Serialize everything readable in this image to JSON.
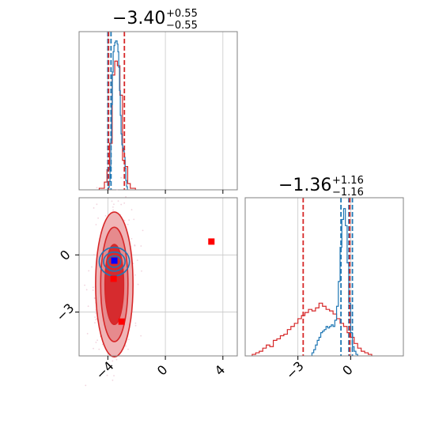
{
  "chart_data": {
    "type": "corner",
    "panels": [
      {
        "id": "param1",
        "title_value": "−3.40",
        "title_plus": "+0.55",
        "title_minus": "−0.55",
        "xlim": [
          -6,
          5
        ],
        "xticks": [
          -4,
          0,
          4
        ],
        "xticklabels": [
          "−4",
          "0",
          "4"
        ],
        "blue_hist": {
          "bin_start": -3.96,
          "bin_width": 0.055,
          "heights": [
            0.15,
            0.55,
            1.5,
            3.2,
            5.5,
            7.6,
            8.9,
            9.3,
            9.5,
            9.6,
            9.6,
            9.4,
            8.9,
            7.9,
            6.4,
            4.8,
            3.6,
            2.9,
            2.7,
            2.5,
            2.1,
            1.4,
            0.6,
            0.2
          ]
        },
        "red_hist": {
          "bin_start": -4.6,
          "bin_width": 0.18,
          "heights": [
            0.1,
            0.1,
            0.5,
            1.3,
            3.0,
            7.4,
            8.3,
            8.0,
            6.1,
            1.9,
            1.5,
            0.4,
            0.1,
            0.1
          ]
        },
        "blue_vlines": [
          -4.0,
          -3.78
        ],
        "red_vlines": [
          -3.95,
          -2.85
        ]
      },
      {
        "id": "param2",
        "title_value": "−1.36",
        "title_plus": "+1.16",
        "title_minus": "−1.16",
        "xlim": [
          -6,
          3
        ],
        "xticks": [
          -3,
          0
        ],
        "xticklabels": [
          "−3",
          "0"
        ],
        "blue_hist": {
          "bin_start": -2.2,
          "bin_width": 0.1,
          "heights": [
            0.2,
            0.4,
            0.7,
            1.0,
            1.2,
            1.5,
            1.6,
            1.7,
            1.9,
            1.8,
            1.9,
            2.0,
            1.9,
            2.3,
            3.2,
            4.8,
            7.0,
            8.8,
            9.5,
            8.4,
            6.0,
            3.4,
            1.5,
            0.6,
            0.3,
            0.1
          ]
        },
        "red_hist": {
          "bin_start": -5.6,
          "bin_width": 0.2,
          "heights": [
            0.1,
            0.2,
            0.3,
            0.5,
            0.7,
            0.6,
            1.0,
            1.1,
            1.3,
            1.4,
            1.7,
            1.9,
            2.1,
            2.4,
            2.6,
            2.8,
            3.0,
            2.9,
            3.1,
            3.4,
            3.2,
            3.0,
            2.9,
            2.7,
            2.4,
            2.1,
            1.9,
            1.5,
            1.2,
            0.8,
            0.5,
            0.3,
            0.2,
            0.1
          ]
        },
        "blue_vlines": [
          -0.55,
          0.1,
          -0.1
        ],
        "red_vlines": [
          -2.7,
          -0.05
        ]
      }
    ],
    "joint": {
      "xlim": [
        -6,
        5
      ],
      "ylim": [
        -5.3,
        3
      ],
      "yticks": [
        0,
        -3
      ],
      "yticklabels": [
        "0",
        "−3"
      ],
      "red_contours": [
        {
          "cx": -3.55,
          "cy": -1.55,
          "rx": 1.3,
          "ry": 3.8
        },
        {
          "cx": -3.55,
          "cy": -1.55,
          "rx": 0.95,
          "ry": 3.0
        },
        {
          "cx": -3.55,
          "cy": -1.55,
          "rx": 0.65,
          "ry": 2.1
        }
      ],
      "blue_contours": [
        {
          "cx": -3.55,
          "cy": -0.35,
          "rx": 1.05,
          "ry": 0.75
        },
        {
          "cx": -3.55,
          "cy": -0.35,
          "rx": 0.75,
          "ry": 0.5
        },
        {
          "cx": -3.55,
          "cy": -0.35,
          "rx": 0.45,
          "ry": 0.3
        }
      ],
      "red_markers": [
        {
          "x": 3.2,
          "y": 0.7
        },
        {
          "x": -3.6,
          "y": -1.25
        },
        {
          "x": -3.05,
          "y": -3.5
        }
      ],
      "blue_markers": [
        {
          "x": -3.55,
          "y": -0.3
        }
      ]
    },
    "colors": {
      "blue": "#1f77b4",
      "red": "#d62728",
      "red_fill_outer": "#f0b4b6",
      "red_fill_mid": "#e68a8d",
      "red_fill_inner": "#d62b2e",
      "marker_red": "#ff0000",
      "marker_blue": "#0000ff"
    }
  }
}
